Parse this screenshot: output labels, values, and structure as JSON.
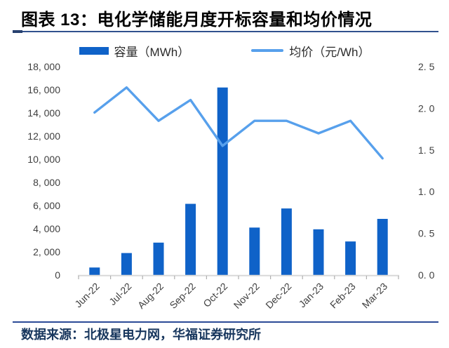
{
  "header": {
    "title": "图表 13：电化学储能月度开标容量和均价情况"
  },
  "legend": {
    "bar_label": "容量（MWh）",
    "line_label": "均价（元/Wh）"
  },
  "footer": {
    "source": "数据来源：北极星电力网，华福证券研究所"
  },
  "colors": {
    "bar": "#0F62C8",
    "line": "#57A0EC",
    "axis_line": "#D9D9D9",
    "axis_tick": "#AFAFAF",
    "axis_label": "#404040",
    "rule": "#31518E",
    "source_text": "#17365D"
  },
  "chart_data": {
    "type": "combo",
    "title": "电化学储能月度开标容量和均价情况",
    "categories": [
      "Jun-22",
      "Jul-22",
      "Aug-22",
      "Sep-22",
      "Oct-22",
      "Nov-22",
      "Dec-22",
      "Jan-23",
      "Feb-23",
      "Mar-23"
    ],
    "series": [
      {
        "name": "容量（MWh）",
        "type": "bar",
        "axis": "left",
        "values": [
          650,
          1900,
          2800,
          6150,
          16200,
          4100,
          5750,
          3950,
          2900,
          4850
        ]
      },
      {
        "name": "均价（元/Wh）",
        "type": "line",
        "axis": "right",
        "values": [
          1.95,
          2.25,
          1.85,
          2.1,
          1.55,
          1.85,
          1.85,
          1.7,
          1.85,
          1.4
        ]
      }
    ],
    "left_axis": {
      "min": 0,
      "max": 18000,
      "step": 2000,
      "tick_labels": [
        "0",
        "2, 000",
        "4, 000",
        "6, 000",
        "8, 000",
        "10, 000",
        "12, 000",
        "14, 000",
        "16, 000",
        "18, 000"
      ]
    },
    "right_axis": {
      "min": 0,
      "max": 2.5,
      "step": 0.5,
      "tick_labels": [
        "0. 0",
        "0. 5",
        "1. 0",
        "1. 5",
        "2. 0",
        "2. 5"
      ]
    },
    "grid": false,
    "legend_position": "top"
  }
}
